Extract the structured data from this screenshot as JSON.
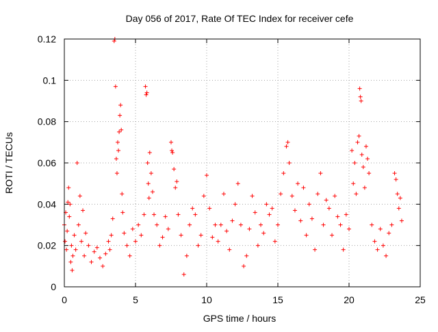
{
  "chart_data": {
    "type": "scatter",
    "title": "Day 056 of 2017, Rate Of TEC Index for receiver cefe",
    "xlabel": "GPS time / hours",
    "ylabel": "ROTI / TECUs",
    "xlim": [
      0,
      25
    ],
    "ylim": [
      0,
      0.12
    ],
    "x_ticks": [
      0,
      5,
      10,
      15,
      20,
      25
    ],
    "x_tick_labels": [
      "0",
      "5",
      "10",
      "15",
      "20",
      "25"
    ],
    "y_ticks": [
      0,
      0.02,
      0.04,
      0.06,
      0.08,
      0.1,
      0.12
    ],
    "y_tick_labels": [
      "0",
      "0.02",
      "0.04",
      "0.06",
      "0.08",
      "0.1",
      "0.12"
    ],
    "grid": true,
    "marker": "+",
    "color": "#ff0000",
    "series": [
      {
        "points": [
          [
            0.0,
            0.03
          ],
          [
            0.05,
            0.022
          ],
          [
            0.1,
            0.036
          ],
          [
            0.15,
            0.018
          ],
          [
            0.2,
            0.027
          ],
          [
            0.25,
            0.041
          ],
          [
            0.3,
            0.048
          ],
          [
            0.35,
            0.034
          ],
          [
            0.4,
            0.04
          ],
          [
            0.45,
            0.012
          ],
          [
            0.5,
            0.02
          ],
          [
            0.55,
            0.008
          ],
          [
            0.6,
            0.015
          ],
          [
            0.7,
            0.025
          ],
          [
            0.8,
            0.018
          ],
          [
            0.9,
            0.06
          ],
          [
            1.0,
            0.03
          ],
          [
            1.1,
            0.044
          ],
          [
            1.2,
            0.022
          ],
          [
            1.3,
            0.037
          ],
          [
            1.4,
            0.015
          ],
          [
            1.5,
            0.026
          ],
          [
            1.7,
            0.02
          ],
          [
            1.9,
            0.012
          ],
          [
            2.1,
            0.017
          ],
          [
            2.3,
            0.019
          ],
          [
            2.5,
            0.014
          ],
          [
            2.7,
            0.01
          ],
          [
            2.9,
            0.016
          ],
          [
            3.1,
            0.022
          ],
          [
            3.2,
            0.018
          ],
          [
            3.3,
            0.025
          ],
          [
            3.4,
            0.033
          ],
          [
            3.5,
            0.119
          ],
          [
            3.55,
            0.12
          ],
          [
            3.6,
            0.097
          ],
          [
            3.65,
            0.062
          ],
          [
            3.7,
            0.055
          ],
          [
            3.75,
            0.07
          ],
          [
            3.8,
            0.066
          ],
          [
            3.85,
            0.075
          ],
          [
            3.9,
            0.083
          ],
          [
            3.95,
            0.088
          ],
          [
            4.0,
            0.076
          ],
          [
            4.05,
            0.045
          ],
          [
            4.1,
            0.036
          ],
          [
            4.2,
            0.026
          ],
          [
            4.4,
            0.02
          ],
          [
            4.6,
            0.015
          ],
          [
            4.8,
            0.028
          ],
          [
            5.0,
            0.022
          ],
          [
            5.2,
            0.03
          ],
          [
            5.4,
            0.025
          ],
          [
            5.6,
            0.035
          ],
          [
            5.7,
            0.097
          ],
          [
            5.75,
            0.093
          ],
          [
            5.8,
            0.094
          ],
          [
            5.85,
            0.06
          ],
          [
            5.9,
            0.05
          ],
          [
            5.95,
            0.043
          ],
          [
            6.0,
            0.065
          ],
          [
            6.1,
            0.055
          ],
          [
            6.2,
            0.046
          ],
          [
            6.3,
            0.035
          ],
          [
            6.5,
            0.03
          ],
          [
            6.7,
            0.02
          ],
          [
            6.9,
            0.024
          ],
          [
            7.1,
            0.034
          ],
          [
            7.3,
            0.028
          ],
          [
            7.5,
            0.07
          ],
          [
            7.55,
            0.066
          ],
          [
            7.6,
            0.065
          ],
          [
            7.7,
            0.057
          ],
          [
            7.8,
            0.048
          ],
          [
            7.9,
            0.051
          ],
          [
            8.0,
            0.035
          ],
          [
            8.2,
            0.025
          ],
          [
            8.4,
            0.006
          ],
          [
            8.6,
            0.015
          ],
          [
            8.8,
            0.03
          ],
          [
            9.0,
            0.038
          ],
          [
            9.2,
            0.035
          ],
          [
            9.4,
            0.02
          ],
          [
            9.6,
            0.025
          ],
          [
            9.8,
            0.044
          ],
          [
            10.0,
            0.054
          ],
          [
            10.2,
            0.038
          ],
          [
            10.4,
            0.024
          ],
          [
            10.6,
            0.03
          ],
          [
            10.8,
            0.022
          ],
          [
            11.0,
            0.03
          ],
          [
            11.2,
            0.045
          ],
          [
            11.4,
            0.027
          ],
          [
            11.6,
            0.018
          ],
          [
            11.8,
            0.032
          ],
          [
            12.0,
            0.04
          ],
          [
            12.2,
            0.05
          ],
          [
            12.4,
            0.03
          ],
          [
            12.6,
            0.01
          ],
          [
            12.8,
            0.015
          ],
          [
            13.0,
            0.028
          ],
          [
            13.2,
            0.044
          ],
          [
            13.4,
            0.036
          ],
          [
            13.6,
            0.02
          ],
          [
            13.8,
            0.03
          ],
          [
            14.0,
            0.026
          ],
          [
            14.2,
            0.04
          ],
          [
            14.4,
            0.035
          ],
          [
            14.6,
            0.038
          ],
          [
            14.8,
            0.022
          ],
          [
            15.0,
            0.03
          ],
          [
            15.2,
            0.045
          ],
          [
            15.4,
            0.055
          ],
          [
            15.6,
            0.068
          ],
          [
            15.7,
            0.07
          ],
          [
            15.8,
            0.06
          ],
          [
            16.0,
            0.044
          ],
          [
            16.2,
            0.037
          ],
          [
            16.4,
            0.05
          ],
          [
            16.6,
            0.032
          ],
          [
            16.8,
            0.048
          ],
          [
            17.0,
            0.025
          ],
          [
            17.2,
            0.04
          ],
          [
            17.4,
            0.033
          ],
          [
            17.6,
            0.018
          ],
          [
            17.8,
            0.045
          ],
          [
            18.0,
            0.055
          ],
          [
            18.2,
            0.03
          ],
          [
            18.4,
            0.042
          ],
          [
            18.6,
            0.038
          ],
          [
            18.8,
            0.025
          ],
          [
            19.0,
            0.044
          ],
          [
            19.2,
            0.034
          ],
          [
            19.4,
            0.03
          ],
          [
            19.6,
            0.018
          ],
          [
            19.8,
            0.035
          ],
          [
            20.0,
            0.028
          ],
          [
            20.2,
            0.066
          ],
          [
            20.3,
            0.05
          ],
          [
            20.4,
            0.06
          ],
          [
            20.5,
            0.045
          ],
          [
            20.6,
            0.07
          ],
          [
            20.7,
            0.073
          ],
          [
            20.75,
            0.096
          ],
          [
            20.8,
            0.092
          ],
          [
            20.85,
            0.09
          ],
          [
            20.9,
            0.064
          ],
          [
            21.0,
            0.058
          ],
          [
            21.1,
            0.048
          ],
          [
            21.2,
            0.068
          ],
          [
            21.3,
            0.062
          ],
          [
            21.4,
            0.055
          ],
          [
            21.6,
            0.03
          ],
          [
            21.8,
            0.022
          ],
          [
            22.0,
            0.018
          ],
          [
            22.2,
            0.028
          ],
          [
            22.4,
            0.02
          ],
          [
            22.6,
            0.015
          ],
          [
            22.8,
            0.026
          ],
          [
            23.0,
            0.03
          ],
          [
            23.2,
            0.055
          ],
          [
            23.3,
            0.052
          ],
          [
            23.4,
            0.045
          ],
          [
            23.5,
            0.038
          ],
          [
            23.6,
            0.043
          ],
          [
            23.7,
            0.032
          ]
        ]
      }
    ]
  }
}
